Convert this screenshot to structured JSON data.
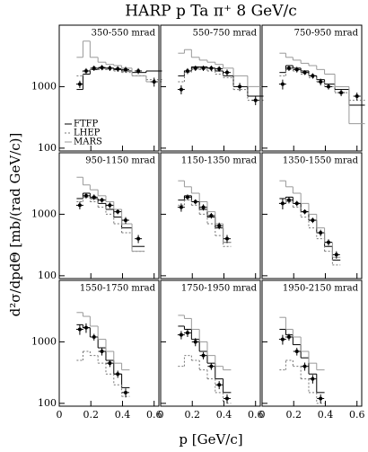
{
  "chart_data": {
    "type": "line",
    "title": "HARP p Ta π⁺ 8 GeV/c",
    "xlabel": "p [GeV/c]",
    "ylabel": "d²σ/dpdΘ [mb/(rad GeV/c)]",
    "xlim": [
      0,
      0.63
    ],
    "ylim": [
      90,
      10000
    ],
    "ylog": true,
    "xticks": [
      0,
      0.2,
      0.4,
      0.6
    ],
    "yticks": [
      100,
      1000
    ],
    "legend": "lower left",
    "models": [
      {
        "name": "FTFP",
        "color": "#000000",
        "dash": "none"
      },
      {
        "name": "LHEP",
        "color": "#777777",
        "dash": "2 2"
      },
      {
        "name": "MARS",
        "color": "#999999",
        "dash": "none"
      }
    ],
    "panels": [
      {
        "label": "350-550 mrad",
        "x": [
          0.13,
          0.17,
          0.22,
          0.27,
          0.32,
          0.37,
          0.42,
          0.5,
          0.6
        ],
        "values": [
          1100,
          1800,
          2000,
          2050,
          2000,
          1950,
          1900,
          1800,
          1200
        ],
        "errors": [
          150,
          200,
          200,
          200,
          200,
          200,
          200,
          200,
          200
        ],
        "models": [
          [
            900,
            1600,
            1900,
            2000,
            2000,
            1900,
            1800,
            1700,
            1800
          ],
          [
            1500,
            1800,
            1900,
            1900,
            1900,
            1800,
            1700,
            1500,
            1300
          ],
          [
            3000,
            5500,
            3000,
            2500,
            2300,
            2200,
            2000,
            1500,
            1200
          ]
        ]
      },
      {
        "label": "550-750 mrad",
        "x": [
          0.13,
          0.17,
          0.22,
          0.27,
          0.32,
          0.37,
          0.42,
          0.5,
          0.6
        ],
        "values": [
          900,
          1800,
          2000,
          2000,
          2000,
          1950,
          1700,
          1000,
          600
        ],
        "errors": [
          150,
          200,
          200,
          200,
          200,
          200,
          200,
          150,
          100
        ],
        "models": [
          [
            1500,
            1800,
            2100,
            2100,
            2000,
            1800,
            1500,
            1000,
            700
          ],
          [
            1200,
            1700,
            1900,
            1900,
            1800,
            1600,
            1400,
            900,
            600
          ],
          [
            3500,
            4000,
            3000,
            2700,
            2500,
            2300,
            2000,
            1500,
            1000
          ]
        ]
      },
      {
        "label": "750-950 mrad",
        "x": [
          0.13,
          0.17,
          0.22,
          0.27,
          0.32,
          0.37,
          0.42,
          0.5,
          0.6
        ],
        "values": [
          1100,
          2000,
          1900,
          1700,
          1500,
          1200,
          1000,
          800,
          700
        ],
        "errors": [
          200,
          200,
          200,
          150,
          150,
          150,
          100,
          100,
          100
        ],
        "models": [
          [
            1700,
            2200,
            2000,
            1800,
            1500,
            1300,
            1100,
            900,
            500
          ],
          [
            1500,
            1900,
            1800,
            1600,
            1400,
            1200,
            1000,
            800,
            600
          ],
          [
            3500,
            3000,
            2700,
            2400,
            2200,
            1900,
            1600,
            1000,
            250
          ]
        ]
      },
      {
        "label": "950-1150 mrad",
        "x": [
          0.13,
          0.17,
          0.22,
          0.27,
          0.32,
          0.37,
          0.42,
          0.5
        ],
        "values": [
          1400,
          2000,
          1900,
          1700,
          1400,
          1100,
          800,
          400
        ],
        "errors": [
          200,
          200,
          200,
          150,
          150,
          100,
          100,
          60
        ],
        "models": [
          [
            1800,
            2200,
            1800,
            1500,
            1200,
            900,
            600,
            300
          ],
          [
            1600,
            1900,
            1600,
            1300,
            1000,
            700,
            500,
            250
          ],
          [
            4000,
            3000,
            2500,
            2000,
            1600,
            1200,
            700,
            250
          ]
        ]
      },
      {
        "label": "1150-1350 mrad",
        "x": [
          0.13,
          0.17,
          0.22,
          0.27,
          0.32,
          0.37,
          0.42
        ],
        "values": [
          1300,
          1900,
          1600,
          1300,
          950,
          650,
          400
        ],
        "errors": [
          200,
          200,
          150,
          150,
          100,
          80,
          60
        ],
        "models": [
          [
            1700,
            2000,
            1600,
            1200,
            900,
            600,
            350
          ],
          [
            1400,
            1700,
            1400,
            1000,
            700,
            450,
            300
          ],
          [
            3500,
            2800,
            2200,
            1600,
            1100,
            700,
            350
          ]
        ]
      },
      {
        "label": "1350-1550 mrad",
        "x": [
          0.13,
          0.17,
          0.22,
          0.27,
          0.32,
          0.37,
          0.42,
          0.47
        ],
        "values": [
          1500,
          1700,
          1500,
          1100,
          800,
          500,
          350,
          220
        ],
        "errors": [
          300,
          200,
          150,
          100,
          80,
          60,
          40,
          30
        ],
        "models": [
          [
            1800,
            1900,
            1500,
            1100,
            800,
            500,
            300,
            180
          ],
          [
            1500,
            1600,
            1300,
            900,
            600,
            400,
            250,
            150
          ],
          [
            3500,
            2800,
            2200,
            1500,
            1000,
            600,
            350,
            200
          ]
        ]
      },
      {
        "label": "1550-1750 mrad",
        "x": [
          0.13,
          0.17,
          0.22,
          0.27,
          0.32,
          0.37,
          0.42
        ],
        "values": [
          1600,
          1700,
          1200,
          700,
          450,
          300,
          150
        ],
        "errors": [
          300,
          300,
          150,
          100,
          60,
          40,
          25
        ],
        "models": [
          [
            1900,
            1700,
            1200,
            800,
            500,
            300,
            180
          ],
          [
            500,
            700,
            600,
            450,
            300,
            200,
            130
          ],
          [
            3000,
            2600,
            1800,
            1100,
            700,
            450,
            350
          ]
        ]
      },
      {
        "label": "1750-1950 mrad",
        "x": [
          0.13,
          0.17,
          0.22,
          0.27,
          0.32,
          0.37,
          0.42
        ],
        "values": [
          1300,
          1400,
          1000,
          600,
          400,
          200,
          120
        ],
        "errors": [
          200,
          200,
          150,
          80,
          50,
          30,
          20
        ],
        "models": [
          [
            1800,
            1600,
            1100,
            700,
            450,
            250,
            150
          ],
          [
            400,
            600,
            500,
            350,
            250,
            150,
            100
          ],
          [
            2700,
            2400,
            1600,
            1000,
            600,
            400,
            350
          ]
        ]
      },
      {
        "label": "1950-2150 mrad",
        "x": [
          0.13,
          0.17,
          0.22,
          0.27,
          0.32,
          0.37
        ],
        "values": [
          1100,
          1200,
          700,
          400,
          250,
          120
        ],
        "errors": [
          200,
          150,
          100,
          60,
          40,
          20
        ],
        "models": [
          [
            1600,
            1300,
            900,
            550,
            300,
            150
          ],
          [
            350,
            500,
            400,
            250,
            150,
            100
          ],
          [
            2500,
            1600,
            1200,
            700,
            450,
            350
          ]
        ]
      }
    ]
  }
}
